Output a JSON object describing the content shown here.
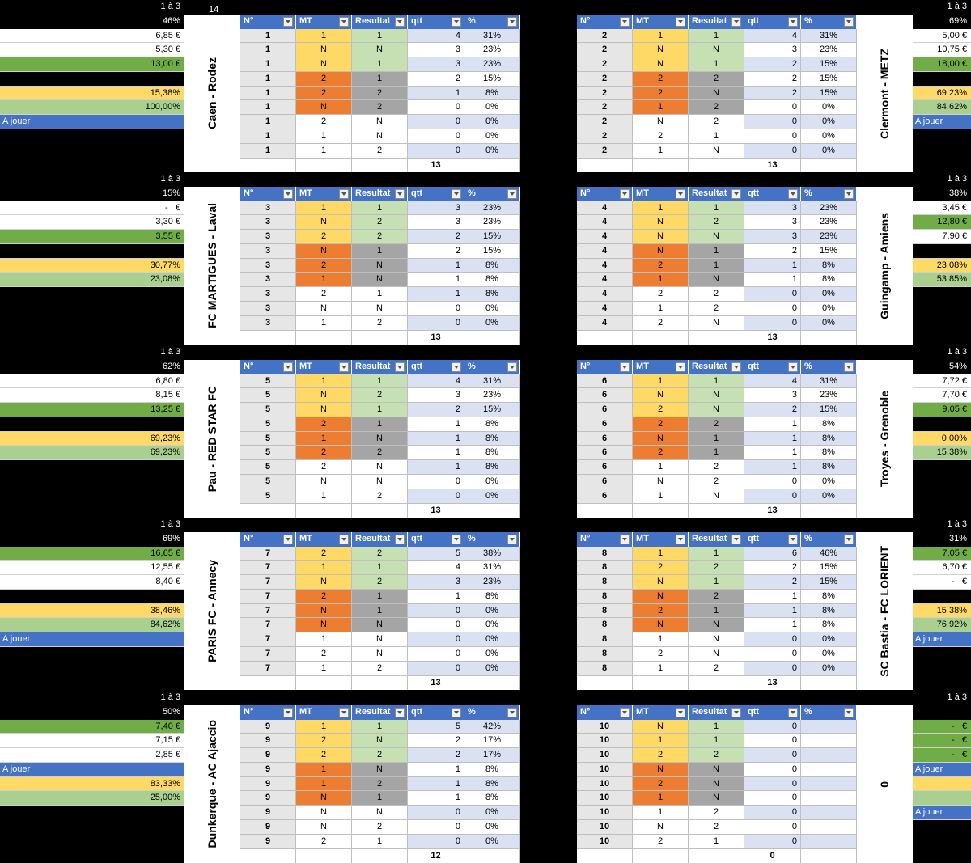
{
  "counter": "14",
  "table_header": [
    "N°",
    "MT",
    "Resultat",
    "qtt",
    "%"
  ],
  "matches": [
    {
      "range": "1 à 3",
      "pct": "46%",
      "label": "Caen - Rodez",
      "cells": [
        {
          "text": "6,85 €",
          "fill": "#ffffff"
        },
        {
          "text": "5,30 €",
          "fill": "#ffffff"
        },
        {
          "text": "13,00 €",
          "fill": "#70ad47"
        },
        {
          "fill": "#000000"
        },
        {
          "text": "15,38%",
          "fill": "#ffd966"
        },
        {
          "text": "100,00%",
          "fill": "#a9d08e"
        },
        {
          "text": "A jouer",
          "fill": "#4472c4"
        }
      ],
      "rows": [
        [
          "1",
          "1",
          "1",
          "4",
          "31%"
        ],
        [
          "1",
          "N",
          "N",
          "3",
          "23%"
        ],
        [
          "1",
          "N",
          "1",
          "3",
          "23%"
        ],
        [
          "1",
          "2",
          "1",
          "2",
          "15%"
        ],
        [
          "1",
          "2",
          "2",
          "1",
          "8%"
        ],
        [
          "1",
          "N",
          "2",
          "0",
          "0%"
        ],
        [
          "1",
          "2",
          "N",
          "0",
          "0%"
        ],
        [
          "1",
          "1",
          "N",
          "0",
          "0%"
        ],
        [
          "1",
          "1",
          "2",
          "0",
          "0%"
        ]
      ],
      "total": "13"
    },
    {
      "range": "1 à 3",
      "pct": "69%",
      "label": "Clermont - METZ",
      "cells": [
        {
          "text": "5,00 €",
          "fill": "#ffffff"
        },
        {
          "text": "10,75 €",
          "fill": "#ffffff"
        },
        {
          "text": "18,00 €",
          "fill": "#70ad47"
        },
        {
          "fill": "#000000"
        },
        {
          "text": "69,23%",
          "fill": "#ffd966"
        },
        {
          "text": "84,62%",
          "fill": "#a9d08e"
        },
        {
          "text": "A jouer",
          "fill": "#4472c4"
        }
      ],
      "rows": [
        [
          "2",
          "1",
          "1",
          "4",
          "31%"
        ],
        [
          "2",
          "N",
          "N",
          "3",
          "23%"
        ],
        [
          "2",
          "N",
          "1",
          "2",
          "15%"
        ],
        [
          "2",
          "2",
          "2",
          "2",
          "15%"
        ],
        [
          "2",
          "2",
          "N",
          "2",
          "15%"
        ],
        [
          "2",
          "1",
          "2",
          "0",
          "0%"
        ],
        [
          "2",
          "N",
          "2",
          "0",
          "0%"
        ],
        [
          "2",
          "2",
          "1",
          "0",
          "0%"
        ],
        [
          "2",
          "1",
          "N",
          "0",
          "0%"
        ]
      ],
      "total": "13"
    },
    {
      "range": "1 à 3",
      "pct": "15%",
      "label": "FC MARTIGUES - Laval",
      "cells": [
        {
          "text": "-   €",
          "fill": "#ffffff"
        },
        {
          "text": "3,30 €",
          "fill": "#ffffff"
        },
        {
          "text": "3,55 €",
          "fill": "#70ad47"
        },
        {
          "fill": "#000000"
        },
        {
          "text": "30,77%",
          "fill": "#ffd966"
        },
        {
          "text": "23,08%",
          "fill": "#a9d08e"
        }
      ],
      "rows": [
        [
          "3",
          "1",
          "1",
          "3",
          "23%"
        ],
        [
          "3",
          "N",
          "2",
          "3",
          "23%"
        ],
        [
          "3",
          "2",
          "2",
          "2",
          "15%"
        ],
        [
          "3",
          "N",
          "1",
          "2",
          "15%"
        ],
        [
          "3",
          "2",
          "N",
          "1",
          "8%"
        ],
        [
          "3",
          "1",
          "N",
          "1",
          "8%"
        ],
        [
          "3",
          "2",
          "1",
          "1",
          "8%"
        ],
        [
          "3",
          "N",
          "N",
          "0",
          "0%"
        ],
        [
          "3",
          "1",
          "2",
          "0",
          "0%"
        ]
      ],
      "total": "13"
    },
    {
      "range": "1 à 3",
      "pct": "38%",
      "label": "Guingamp - Amiens",
      "cells": [
        {
          "text": "3,45 €",
          "fill": "#ffffff"
        },
        {
          "text": "12,80 €",
          "fill": "#70ad47"
        },
        {
          "text": "7,90 €",
          "fill": "#ffffff"
        },
        {
          "fill": "#000000"
        },
        {
          "text": "23,08%",
          "fill": "#ffd966"
        },
        {
          "text": "53,85%",
          "fill": "#a9d08e"
        }
      ],
      "rows": [
        [
          "4",
          "1",
          "1",
          "3",
          "23%"
        ],
        [
          "4",
          "N",
          "2",
          "3",
          "23%"
        ],
        [
          "4",
          "N",
          "N",
          "3",
          "23%"
        ],
        [
          "4",
          "N",
          "1",
          "2",
          "15%"
        ],
        [
          "4",
          "2",
          "1",
          "1",
          "8%"
        ],
        [
          "4",
          "1",
          "N",
          "1",
          "8%"
        ],
        [
          "4",
          "2",
          "2",
          "0",
          "0%"
        ],
        [
          "4",
          "1",
          "2",
          "0",
          "0%"
        ],
        [
          "4",
          "2",
          "N",
          "0",
          "0%"
        ]
      ],
      "total": "13"
    },
    {
      "range": "1 à 3",
      "pct": "62%",
      "label": "Pau - RED STAR FC",
      "cells": [
        {
          "text": "6,80 €",
          "fill": "#ffffff"
        },
        {
          "text": "8,15 €",
          "fill": "#ffffff"
        },
        {
          "text": "13,25 €",
          "fill": "#70ad47"
        },
        {
          "fill": "#000000"
        },
        {
          "text": "69,23%",
          "fill": "#ffd966"
        },
        {
          "text": "69,23%",
          "fill": "#a9d08e"
        }
      ],
      "rows": [
        [
          "5",
          "1",
          "1",
          "4",
          "31%"
        ],
        [
          "5",
          "N",
          "2",
          "3",
          "23%"
        ],
        [
          "5",
          "N",
          "1",
          "2",
          "15%"
        ],
        [
          "5",
          "2",
          "1",
          "1",
          "8%"
        ],
        [
          "5",
          "1",
          "N",
          "1",
          "8%"
        ],
        [
          "5",
          "2",
          "2",
          "1",
          "8%"
        ],
        [
          "5",
          "2",
          "N",
          "1",
          "8%"
        ],
        [
          "5",
          "N",
          "N",
          "0",
          "0%"
        ],
        [
          "5",
          "1",
          "2",
          "0",
          "0%"
        ]
      ],
      "total": "13"
    },
    {
      "range": "1 à 3",
      "pct": "54%",
      "label": "Troyes - Grenoble",
      "cells": [
        {
          "text": "7,72 €",
          "fill": "#ffffff"
        },
        {
          "text": "7,70 €",
          "fill": "#ffffff"
        },
        {
          "text": "9,05 €",
          "fill": "#70ad47"
        },
        {
          "fill": "#000000"
        },
        {
          "text": "0,00%",
          "fill": "#ffd966"
        },
        {
          "text": "15,38%",
          "fill": "#a9d08e"
        }
      ],
      "rows": [
        [
          "6",
          "1",
          "1",
          "4",
          "31%"
        ],
        [
          "6",
          "N",
          "N",
          "3",
          "23%"
        ],
        [
          "6",
          "2",
          "N",
          "2",
          "15%"
        ],
        [
          "6",
          "2",
          "2",
          "1",
          "8%"
        ],
        [
          "6",
          "N",
          "1",
          "1",
          "8%"
        ],
        [
          "6",
          "2",
          "1",
          "1",
          "8%"
        ],
        [
          "6",
          "1",
          "2",
          "1",
          "8%"
        ],
        [
          "6",
          "N",
          "2",
          "0",
          "0%"
        ],
        [
          "6",
          "1",
          "N",
          "0",
          "0%"
        ]
      ],
      "total": "13"
    },
    {
      "range": "1 à 3",
      "pct": "69%",
      "label": "PARIS FC - Annecy",
      "cells": [
        {
          "text": "16,65 €",
          "fill": "#70ad47"
        },
        {
          "text": "12,55 €",
          "fill": "#ffffff"
        },
        {
          "text": "8,40 €",
          "fill": "#ffffff"
        },
        {
          "fill": "#000000"
        },
        {
          "text": "38,46%",
          "fill": "#ffd966"
        },
        {
          "text": "84,62%",
          "fill": "#a9d08e"
        },
        {
          "text": "A jouer",
          "fill": "#4472c4"
        }
      ],
      "rows": [
        [
          "7",
          "2",
          "2",
          "5",
          "38%"
        ],
        [
          "7",
          "1",
          "1",
          "4",
          "31%"
        ],
        [
          "7",
          "N",
          "2",
          "3",
          "23%"
        ],
        [
          "7",
          "2",
          "1",
          "1",
          "8%"
        ],
        [
          "7",
          "N",
          "1",
          "0",
          "0%"
        ],
        [
          "7",
          "N",
          "N",
          "0",
          "0%"
        ],
        [
          "7",
          "1",
          "N",
          "0",
          "0%"
        ],
        [
          "7",
          "2",
          "N",
          "0",
          "0%"
        ],
        [
          "7",
          "1",
          "2",
          "0",
          "0%"
        ]
      ],
      "total": "13"
    },
    {
      "range": "1 à 3",
      "pct": "31%",
      "label": "SC Bastia - FC LORIENT",
      "cells": [
        {
          "text": "7,05 €",
          "fill": "#70ad47"
        },
        {
          "text": "6,70 €",
          "fill": "#ffffff"
        },
        {
          "text": "-   €",
          "fill": "#ffffff"
        },
        {
          "fill": "#000000"
        },
        {
          "text": "15,38%",
          "fill": "#ffd966"
        },
        {
          "text": "76,92%",
          "fill": "#a9d08e"
        },
        {
          "text": "A jouer",
          "fill": "#4472c4"
        }
      ],
      "rows": [
        [
          "8",
          "1",
          "1",
          "6",
          "46%"
        ],
        [
          "8",
          "2",
          "2",
          "2",
          "15%"
        ],
        [
          "8",
          "N",
          "1",
          "2",
          "15%"
        ],
        [
          "8",
          "N",
          "2",
          "1",
          "8%"
        ],
        [
          "8",
          "2",
          "1",
          "1",
          "8%"
        ],
        [
          "8",
          "N",
          "N",
          "1",
          "8%"
        ],
        [
          "8",
          "1",
          "N",
          "0",
          "0%"
        ],
        [
          "8",
          "2",
          "N",
          "0",
          "0%"
        ],
        [
          "8",
          "1",
          "2",
          "0",
          "0%"
        ]
      ],
      "total": "13"
    },
    {
      "range": "1 à 3",
      "pct": "50%",
      "label": "Dunkerque - AC Ajaccio",
      "cells": [
        {
          "text": "7,40 €",
          "fill": "#70ad47"
        },
        {
          "text": "7,15 €",
          "fill": "#ffffff"
        },
        {
          "text": "2,85 €",
          "fill": "#ffffff"
        },
        {
          "text": "A jouer",
          "fill": "#4472c4"
        },
        {
          "text": "83,33%",
          "fill": "#ffd966"
        },
        {
          "text": "25,00%",
          "fill": "#a9d08e"
        }
      ],
      "rows": [
        [
          "9",
          "1",
          "1",
          "5",
          "42%"
        ],
        [
          "9",
          "2",
          "N",
          "2",
          "17%"
        ],
        [
          "9",
          "2",
          "2",
          "2",
          "17%"
        ],
        [
          "9",
          "1",
          "N",
          "1",
          "8%"
        ],
        [
          "9",
          "1",
          "2",
          "1",
          "8%"
        ],
        [
          "9",
          "N",
          "1",
          "1",
          "8%"
        ],
        [
          "9",
          "N",
          "N",
          "0",
          "0%"
        ],
        [
          "9",
          "N",
          "2",
          "0",
          "0%"
        ],
        [
          "9",
          "2",
          "1",
          "0",
          "0%"
        ]
      ],
      "total": "12"
    },
    {
      "range": "1 à 3",
      "label": "0",
      "cells": [
        {
          "text": "-   €",
          "fill": "#70ad47"
        },
        {
          "text": "-   €",
          "fill": "#70ad47"
        },
        {
          "text": "-   €",
          "fill": "#70ad47"
        },
        {
          "text": "A jouer",
          "fill": "#4472c4"
        },
        {
          "fill": "#ffd966"
        },
        {
          "fill": "#a9d08e"
        },
        {
          "text": "A jouer",
          "fill": "#4472c4"
        }
      ],
      "rows": [
        [
          "10",
          "N",
          "1",
          "0"
        ],
        [
          "10",
          "1",
          "1",
          "0"
        ],
        [
          "10",
          "2",
          "2",
          "0"
        ],
        [
          "10",
          "N",
          "N",
          "0"
        ],
        [
          "10",
          "2",
          "N",
          "0"
        ],
        [
          "10",
          "1",
          "N",
          "0"
        ],
        [
          "10",
          "1",
          "2",
          "0"
        ],
        [
          "10",
          "N",
          "2",
          "0"
        ],
        [
          "10",
          "2",
          "1",
          "0"
        ]
      ],
      "total": "0"
    }
  ]
}
